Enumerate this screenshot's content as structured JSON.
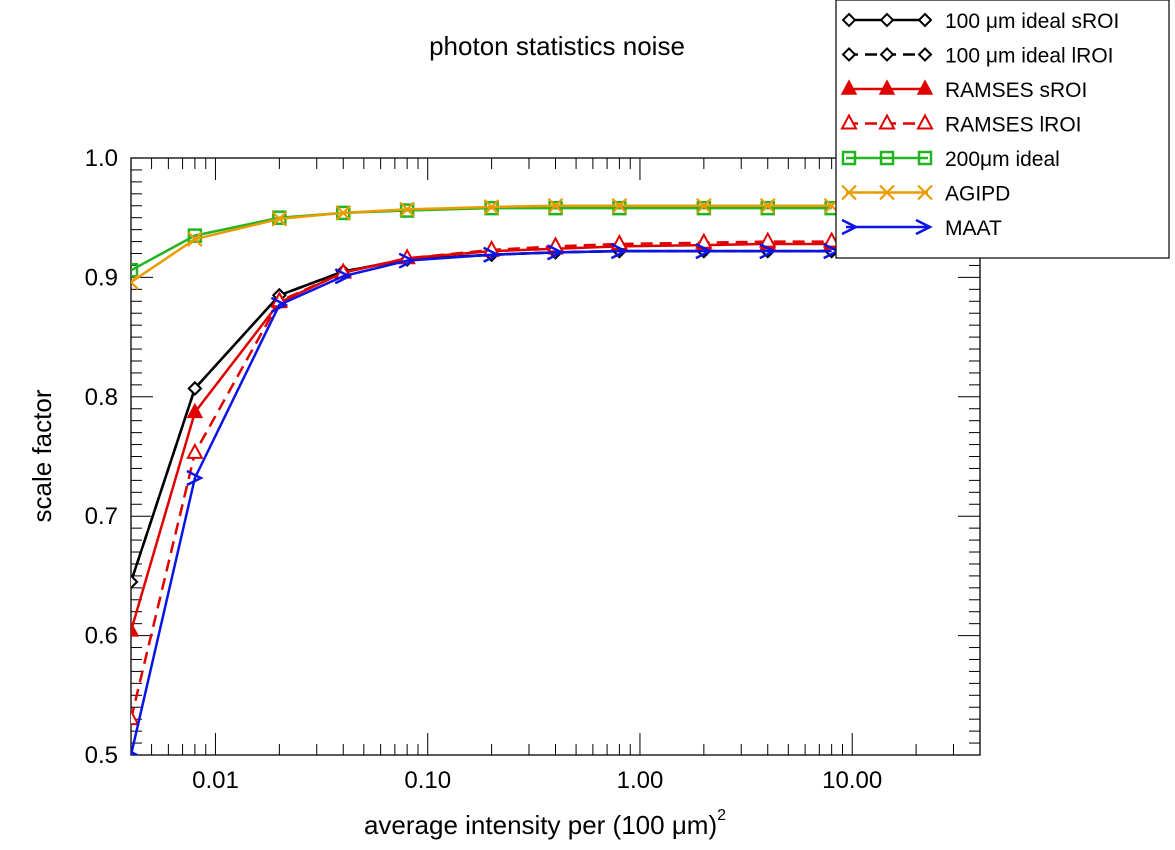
{
  "chart_data": {
    "type": "line",
    "title": "photon statistics noise",
    "xlabel": "average intensity per (100 μm)",
    "xlabel_superscript": "2",
    "ylabel": "scale factor",
    "xscale": "log",
    "xlim": [
      0.004,
      40
    ],
    "ylim": [
      0.5,
      1.0
    ],
    "xticks": [
      {
        "value": 0.01,
        "label": "0.01"
      },
      {
        "value": 0.1,
        "label": "0.10"
      },
      {
        "value": 1,
        "label": "1.00"
      },
      {
        "value": 10,
        "label": "10.00"
      }
    ],
    "yticks": [
      {
        "value": 0.5,
        "label": "0.5"
      },
      {
        "value": 0.6,
        "label": "0.6"
      },
      {
        "value": 0.7,
        "label": "0.7"
      },
      {
        "value": 0.8,
        "label": "0.8"
      },
      {
        "value": 0.9,
        "label": "0.9"
      },
      {
        "value": 1.0,
        "label": "1.0"
      }
    ],
    "legend_position": "top-right",
    "x": [
      0.004,
      0.008,
      0.02,
      0.04,
      0.08,
      0.2,
      0.4,
      0.8,
      2,
      4,
      8
    ],
    "series": [
      {
        "name": "100 μm ideal sROI",
        "color": "#000000",
        "dash": "solid",
        "marker": "diamond",
        "values": [
          0.645,
          0.807,
          0.885,
          0.905,
          0.915,
          0.919,
          0.921,
          0.922,
          0.922,
          0.922,
          0.922
        ]
      },
      {
        "name": "100 μm ideal lROI",
        "color": "#000000",
        "dash": "dashed",
        "marker": "diamond",
        "values": [
          0.645,
          0.807,
          0.885,
          0.905,
          0.915,
          0.919,
          0.921,
          0.922,
          0.922,
          0.922,
          0.922
        ]
      },
      {
        "name": "RAMSES sROI",
        "color": "#e00000",
        "dash": "solid",
        "marker": "triangle-filled",
        "values": [
          0.604,
          0.787,
          0.879,
          0.904,
          0.916,
          0.922,
          0.924,
          0.926,
          0.927,
          0.928,
          0.928
        ]
      },
      {
        "name": "RAMSES lROI",
        "color": "#e00000",
        "dash": "dashed",
        "marker": "triangle-open",
        "values": [
          0.53,
          0.753,
          0.88,
          0.904,
          0.916,
          0.923,
          0.926,
          0.928,
          0.929,
          0.93,
          0.93
        ]
      },
      {
        "name": "200μm ideal",
        "color": "#22b522",
        "dash": "solid",
        "marker": "square",
        "values": [
          0.906,
          0.935,
          0.95,
          0.954,
          0.956,
          0.958,
          0.958,
          0.958,
          0.958,
          0.958,
          0.958
        ]
      },
      {
        "name": "AGIPD",
        "color": "#eb9a00",
        "dash": "solid",
        "marker": "x",
        "values": [
          0.896,
          0.932,
          0.949,
          0.954,
          0.957,
          0.959,
          0.96,
          0.96,
          0.96,
          0.96,
          0.96
        ]
      },
      {
        "name": "MAAT",
        "color": "#0a14e6",
        "dash": "solid",
        "marker": "chevron",
        "values": [
          0.5,
          0.732,
          0.877,
          0.901,
          0.914,
          0.919,
          0.921,
          0.922,
          0.922,
          0.922,
          0.922
        ]
      }
    ]
  }
}
